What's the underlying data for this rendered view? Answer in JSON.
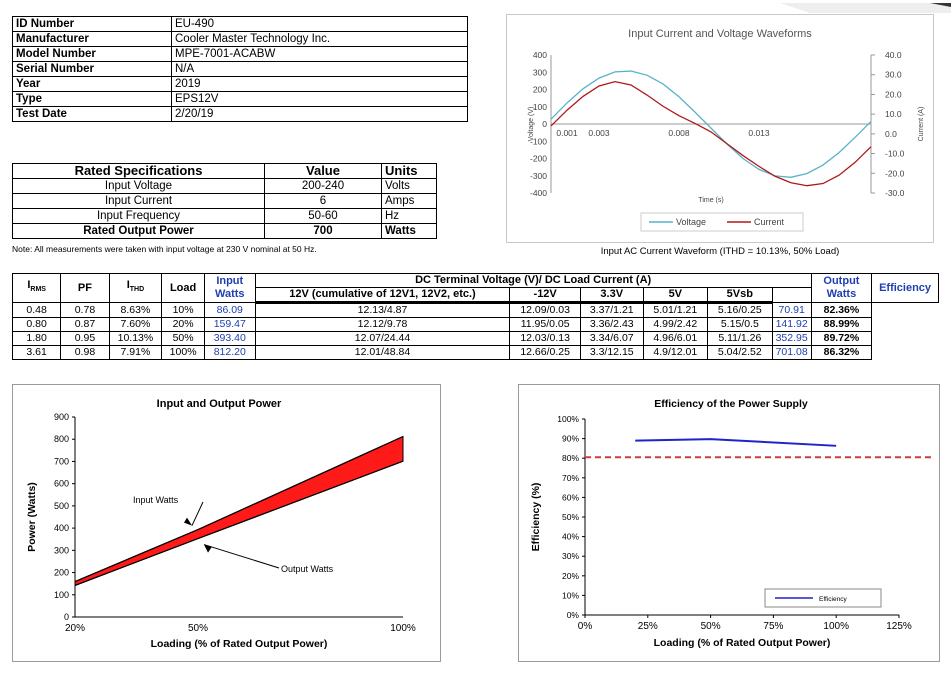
{
  "info": {
    "rows": [
      {
        "label": "ID Number",
        "value": "EU-490"
      },
      {
        "label": "Manufacturer",
        "value": "Cooler Master Technology Inc."
      },
      {
        "label": "Model Number",
        "value": "MPE-7001-ACABW"
      },
      {
        "label": "Serial Number",
        "value": "N/A"
      },
      {
        "label": "Year",
        "value": "2019"
      },
      {
        "label": "Type",
        "value": "EPS12V"
      },
      {
        "label": "Test Date",
        "value": "2/20/19"
      }
    ]
  },
  "rated": {
    "headers": [
      "Rated Specifications",
      "Value",
      "Units"
    ],
    "rows": [
      {
        "spec": "Input Voltage",
        "value": "200-240",
        "unit": "Volts"
      },
      {
        "spec": "Input Current",
        "value": "6",
        "unit": "Amps"
      },
      {
        "spec": "Input Frequency",
        "value": "50-60",
        "unit": "Hz"
      },
      {
        "spec": "Rated Output Power",
        "value": "700",
        "unit": "Watts"
      }
    ],
    "note": "Note: All measurements were taken with input voltage at 230 V nominal at 50 Hz."
  },
  "main_table": {
    "h_irms": "I",
    "h_irms_sub": "RMS",
    "h_pf": "PF",
    "h_ithd": "I",
    "h_ithd_sub": "THD",
    "h_load": "Load",
    "h_input_watts": "Input Watts",
    "h_dc": "DC Terminal Voltage (V)/ DC Load Current (A)",
    "h_12v": "12V (cumulative of 12V1, 12V2, etc.)",
    "h_m12v": "-12V",
    "h_33v": "3.3V",
    "h_5v": "5V",
    "h_5vsb": "5Vsb",
    "h_output_watts": "Output Watts",
    "h_eff": "Efficiency",
    "rows": [
      {
        "irms": "0.48",
        "pf": "0.78",
        "ithd": "8.63%",
        "load": "10%",
        "in_w": "86.09",
        "v12": "12.13/4.87",
        "vm12": "12.09/0.03",
        "v33": "3.37/1.21",
        "v5": "5.01/1.21",
        "v5sb": "5.16/0.25",
        "out_w": "70.91",
        "eff": "82.36%"
      },
      {
        "irms": "0.80",
        "pf": "0.87",
        "ithd": "7.60%",
        "load": "20%",
        "in_w": "159.47",
        "v12": "12.12/9.78",
        "vm12": "11.95/0.05",
        "v33": "3.36/2.43",
        "v5": "4.99/2.42",
        "v5sb": "5.15/0.5",
        "out_w": "141.92",
        "eff": "88.99%"
      },
      {
        "irms": "1.80",
        "pf": "0.95",
        "ithd": "10.13%",
        "load": "50%",
        "in_w": "393.40",
        "v12": "12.07/24.44",
        "vm12": "12.03/0.13",
        "v33": "3.34/6.07",
        "v5": "4.96/6.01",
        "v5sb": "5.11/1.26",
        "out_w": "352.95",
        "eff": "89.72%"
      },
      {
        "irms": "3.61",
        "pf": "0.98",
        "ithd": "7.91%",
        "load": "100%",
        "in_w": "812.20",
        "v12": "12.01/48.84",
        "vm12": "12.66/0.25",
        "v33": "3.3/12.15",
        "v5": "4.9/12.01",
        "v5sb": "5.04/2.52",
        "out_w": "701.08",
        "eff": "86.32%"
      }
    ]
  },
  "colors": {
    "voltage": "#56b4c9",
    "current": "#b01818",
    "power_fill": "#ff1a1a",
    "efficiency_line": "#2222cc",
    "threshold": "#d03a3a",
    "watts_blue": "#1f3fb0"
  },
  "chart_data": [
    {
      "type": "line",
      "title": "Input Current and Voltage Waveforms",
      "caption": "Input AC Current Waveform (ITHD = 10.13%, 50% Load)",
      "xlabel": "Time (s)",
      "ylabel": "Voltage (V)",
      "y2label": "Current (A)",
      "xlim": [
        0,
        0.02
      ],
      "xticks": [
        0.001,
        0.003,
        0.008,
        0.013
      ],
      "xtick_labels": [
        "0.001",
        "0.003",
        "0.008",
        "0.013"
      ],
      "ylim": [
        -400,
        400
      ],
      "yticks": [
        400,
        300,
        200,
        100,
        0,
        -100,
        -200,
        -300,
        -400
      ],
      "y2lim": [
        -30,
        40
      ],
      "y2ticks": [
        40,
        30,
        20,
        10,
        0,
        -10,
        -20,
        -30
      ],
      "y2tick_labels": [
        "40.0",
        "30.0",
        "20.0",
        "10.0",
        "0.0",
        "-10.0",
        "-20.0",
        "-30.0"
      ],
      "legend": [
        "Voltage",
        "Current"
      ],
      "series": [
        {
          "name": "Voltage",
          "axis": "y",
          "x": [
            0,
            0.001,
            0.002,
            0.003,
            0.004,
            0.005,
            0.006,
            0.007,
            0.008,
            0.009,
            0.01,
            0.011,
            0.012,
            0.013,
            0.014,
            0.015,
            0.016,
            0.017,
            0.018,
            0.019,
            0.02
          ],
          "y": [
            28,
            122,
            204,
            266,
            302,
            307,
            283,
            232,
            158,
            69,
            -24,
            -116,
            -200,
            -263,
            -301,
            -309,
            -287,
            -238,
            -166,
            -78,
            15
          ]
        },
        {
          "name": "Current",
          "axis": "y2",
          "x": [
            0,
            0.001,
            0.002,
            0.003,
            0.004,
            0.005,
            0.006,
            0.007,
            0.008,
            0.009,
            0.01,
            0.011,
            0.012,
            0.013,
            0.014,
            0.015,
            0.016,
            0.017,
            0.018,
            0.019,
            0.02
          ],
          "y": [
            4.0,
            12.0,
            19.0,
            24.3,
            26.5,
            24.8,
            19.7,
            14.0,
            9.2,
            5.3,
            1.0,
            -5.0,
            -11.0,
            -16.5,
            -21.5,
            -24.8,
            -26.3,
            -25.2,
            -21.0,
            -14.5,
            -6.5
          ]
        }
      ]
    },
    {
      "type": "area",
      "title": "Input and Output Power",
      "xlabel": "Loading (% of Rated Output Power)",
      "ylabel": "Power (Watts)",
      "categories": [
        "20%",
        "50%",
        "100%"
      ],
      "ylim": [
        0,
        900
      ],
      "yticks": [
        0,
        100,
        200,
        300,
        400,
        500,
        600,
        700,
        800,
        900
      ],
      "annotations": [
        "Input Watts",
        "Output Watts"
      ],
      "series": [
        {
          "name": "Input Watts",
          "values": [
            159.47,
            393.4,
            812.2
          ]
        },
        {
          "name": "Output Watts",
          "values": [
            141.92,
            352.95,
            701.08
          ]
        }
      ]
    },
    {
      "type": "line",
      "title": "Efficiency of the Power Supply",
      "xlabel": "Loading (% of Rated Output Power)",
      "ylabel": "Efficiency (%)",
      "xlim": [
        0,
        125
      ],
      "xticks": [
        "0%",
        "25%",
        "50%",
        "75%",
        "100%",
        "125%"
      ],
      "ylim": [
        0,
        100
      ],
      "yticks": [
        "0%",
        "10%",
        "20%",
        "30%",
        "40%",
        "50%",
        "60%",
        "70%",
        "80%",
        "90%",
        "100%"
      ],
      "legend": [
        "Efficiency"
      ],
      "threshold": 80.5,
      "series": [
        {
          "name": "Efficiency",
          "x": [
            20,
            50,
            100
          ],
          "y": [
            88.99,
            89.72,
            86.32
          ]
        }
      ]
    }
  ]
}
